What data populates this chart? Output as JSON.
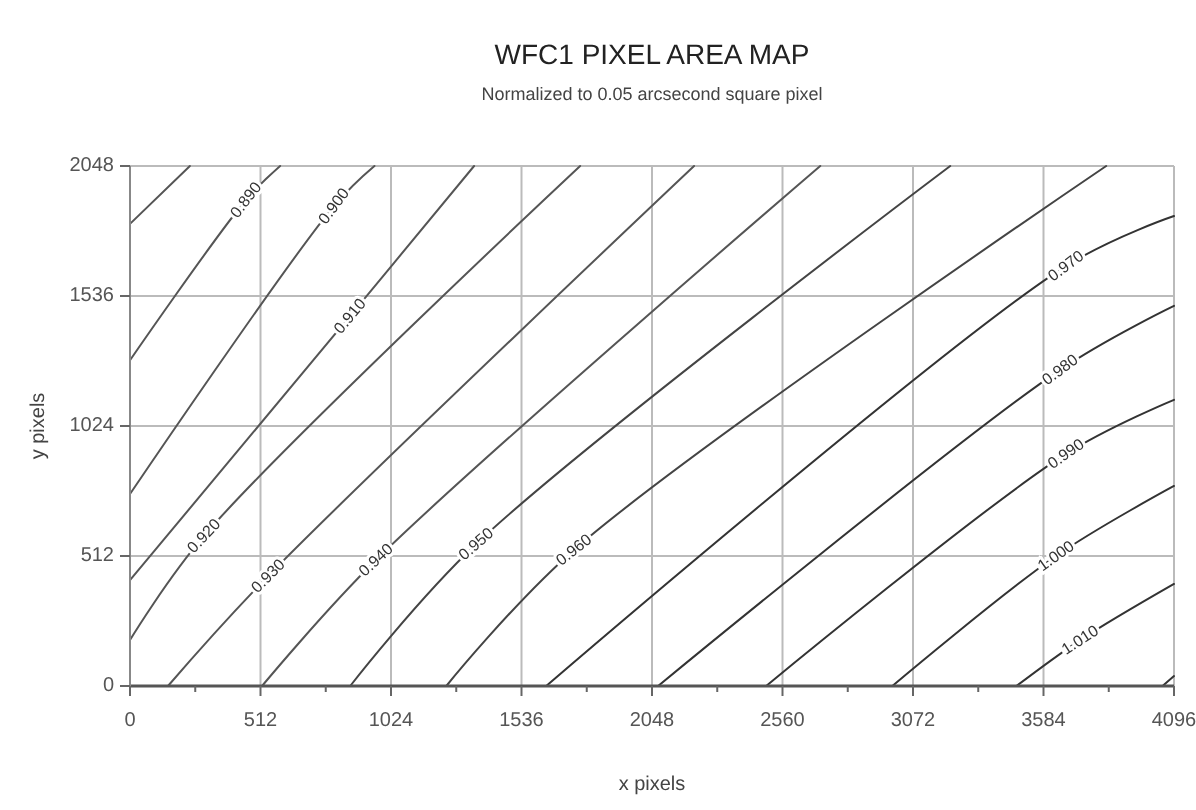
{
  "chart_data": {
    "type": "line",
    "title": "WFC1 PIXEL AREA MAP",
    "subtitle": "Normalized to 0.05 arcsecond square pixel",
    "xlabel": "x pixels",
    "ylabel": "y pixels",
    "xlim": [
      0,
      4096
    ],
    "ylim": [
      0,
      2048
    ],
    "xticks": [
      0,
      {
        "value": 256,
        "label": null
      },
      512,
      {
        "value": 768,
        "label": null
      },
      1024,
      {
        "value": 1280,
        "label": null
      },
      1536,
      {
        "value": 1792,
        "label": null
      },
      2048,
      {
        "value": 2304,
        "label": null
      },
      2560,
      {
        "value": 2816,
        "label": null
      },
      3072,
      {
        "value": 3328,
        "label": null
      },
      3584,
      {
        "value": 3840,
        "label": null
      },
      4096
    ],
    "yticks": [
      0,
      512,
      1024,
      1536,
      2048
    ],
    "grid": true,
    "marker": "none",
    "line_style": "solid",
    "series": [
      {
        "color": "#555555",
        "x": [
          0,
          235
        ],
        "values": [
          1820,
          2048
        ]
      },
      {
        "name": "0.890",
        "color": "#555555",
        "x": [
          0,
          455,
          589
        ],
        "values": [
          1283,
          1914,
          2048
        ]
      },
      {
        "name": "0.900",
        "color": "#555555",
        "x": [
          0,
          800,
          959
        ],
        "values": [
          756,
          1890,
          2048
        ]
      },
      {
        "name": "0.910",
        "color": "#555555",
        "x": [
          0,
          863,
          1350
        ],
        "values": [
          417,
          1457,
          2048
        ]
      },
      {
        "name": "0.920",
        "color": "#555555",
        "x": [
          0,
          290,
          1766
        ],
        "values": [
          181,
          591,
          2048
        ]
      },
      {
        "name": "0.930",
        "color": "#555555",
        "x": [
          149,
          542,
          2213
        ],
        "values": [
          0,
          433,
          2048
        ]
      },
      {
        "name": "0.940",
        "color": "#555555",
        "x": [
          518,
          965,
          2708
        ],
        "values": [
          0,
          496,
          2048
        ]
      },
      {
        "name": "0.950",
        "color": "#444444",
        "x": [
          864,
          1358,
          3218
        ],
        "values": [
          0,
          559,
          2048
        ]
      },
      {
        "name": "0.960",
        "color": "#444444",
        "x": [
          1241,
          1742,
          3830
        ],
        "values": [
          0,
          536,
          2048
        ]
      },
      {
        "name": "0.970",
        "color": "#333333",
        "x": [
          1633,
          3672,
          4096
        ],
        "values": [
          0,
          1654,
          1851
        ]
      },
      {
        "name": "0.980",
        "color": "#333333",
        "x": [
          2072,
          3649,
          4096
        ],
        "values": [
          0,
          1245,
          1497
        ]
      },
      {
        "name": "0.990",
        "color": "#333333",
        "x": [
          2496,
          3672,
          4096
        ],
        "values": [
          0,
          914,
          1127
        ]
      },
      {
        "name": "1.000",
        "color": "#333333",
        "x": [
          2991,
          3633,
          4096
        ],
        "values": [
          0,
          512,
          788
        ]
      },
      {
        "name": "1.010",
        "color": "#333333",
        "x": [
          3478,
          3728,
          4096
        ],
        "values": [
          0,
          181,
          402
        ]
      },
      {
        "color": "#333333",
        "x": [
          4051,
          4096
        ],
        "values": [
          0,
          39
        ]
      }
    ]
  }
}
